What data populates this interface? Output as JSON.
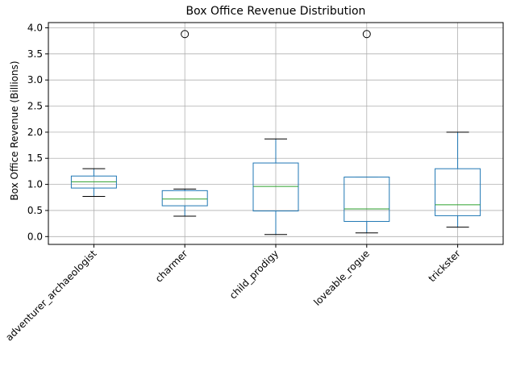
{
  "chart_data": {
    "type": "box",
    "title": "Box Office Revenue Distribution",
    "xlabel": "",
    "ylabel": "Box Office Revenue (Billions)",
    "ylim": [
      -0.15,
      4.1
    ],
    "yticks": [
      0.0,
      0.5,
      1.0,
      1.5,
      2.0,
      2.5,
      3.0,
      3.5,
      4.0
    ],
    "ytick_labels": [
      "0.0",
      "0.5",
      "1.0",
      "1.5",
      "2.0",
      "2.5",
      "3.0",
      "3.5",
      "4.0"
    ],
    "grid": true,
    "colors": {
      "box": "#1f77b4",
      "median": "#2ca02c",
      "whisker": "#000000",
      "grid": "#b0b0b0"
    },
    "categories": [
      "adventurer_archaeologist",
      "charmer",
      "child_prodigy",
      "loveable_rogue",
      "trickster"
    ],
    "boxes": [
      {
        "category": "adventurer_archaeologist",
        "whislo": 0.77,
        "q1": 0.93,
        "med": 1.05,
        "q3": 1.16,
        "whishi": 1.3,
        "fliers": []
      },
      {
        "category": "charmer",
        "whislo": 0.39,
        "q1": 0.59,
        "med": 0.72,
        "q3": 0.88,
        "whishi": 0.91,
        "fliers": [
          3.88
        ]
      },
      {
        "category": "child_prodigy",
        "whislo": 0.04,
        "q1": 0.49,
        "med": 0.96,
        "q3": 1.41,
        "whishi": 1.87,
        "fliers": []
      },
      {
        "category": "loveable_rogue",
        "whislo": 0.07,
        "q1": 0.29,
        "med": 0.53,
        "q3": 1.14,
        "whishi": 1.14,
        "fliers": [
          3.88
        ]
      },
      {
        "category": "trickster",
        "whislo": 0.18,
        "q1": 0.4,
        "med": 0.61,
        "q3": 1.3,
        "whishi": 2.0,
        "fliers": []
      }
    ]
  }
}
